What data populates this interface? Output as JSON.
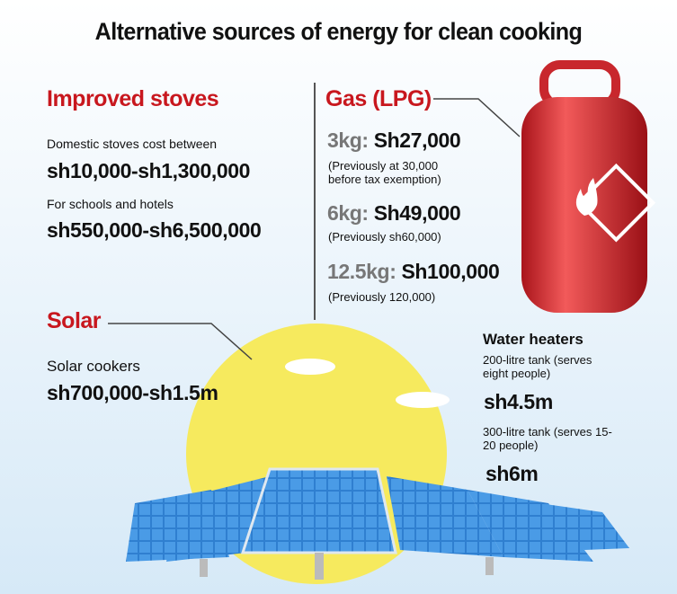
{
  "title": "Alternative sources of energy for clean cooking",
  "stoves": {
    "heading": "Improved stoves",
    "items": [
      {
        "label": "Domestic stoves cost between",
        "price": "sh10,000-sh1,300,000"
      },
      {
        "label": "For schools and hotels",
        "price": "sh550,000-sh6,500,000"
      }
    ]
  },
  "gas": {
    "heading": "Gas (LPG)",
    "items": [
      {
        "size": "3kg:",
        "price": "Sh27,000",
        "note": "(Previously at 30,000 before tax exemption)"
      },
      {
        "size": "6kg:",
        "price": "Sh49,000",
        "note": "(Previously sh60,000)"
      },
      {
        "size": "12.5kg:",
        "price": "Sh100,000",
        "note": "(Previously 120,000)"
      }
    ]
  },
  "solar": {
    "heading": "Solar",
    "label": "Solar cookers",
    "price": "sh700,000-sh1.5m"
  },
  "water_heaters": {
    "heading": "Water heaters",
    "items": [
      {
        "label": "200-litre tank (serves eight people)",
        "price": "sh4.5m"
      },
      {
        "label": "300-litre tank (serves 15-20 people)",
        "price": "sh6m"
      }
    ]
  }
}
